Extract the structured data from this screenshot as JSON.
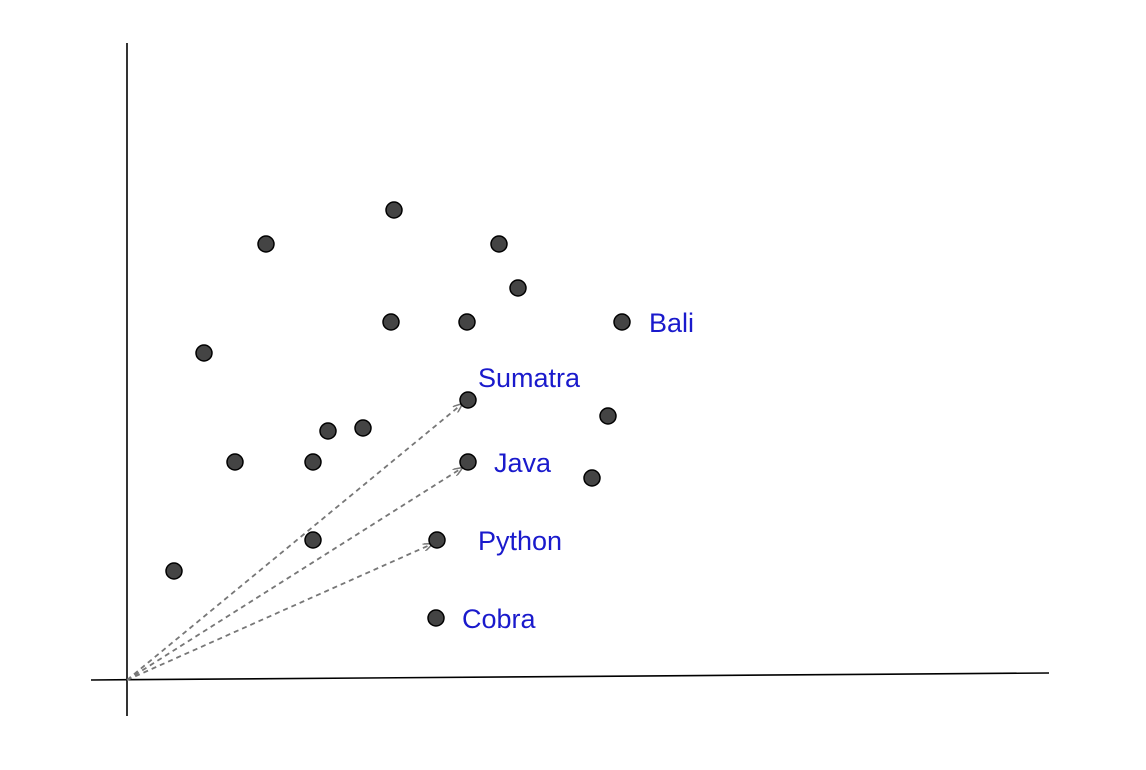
{
  "colors": {
    "point_fill": "#444444",
    "label_color": "#1a1acc",
    "arrow_color": "#777777",
    "axis_color": "#000000"
  },
  "labels": {
    "bali": "Bali",
    "sumatra": "Sumatra",
    "java": "Java",
    "python": "Python",
    "cobra": "Cobra"
  }
}
